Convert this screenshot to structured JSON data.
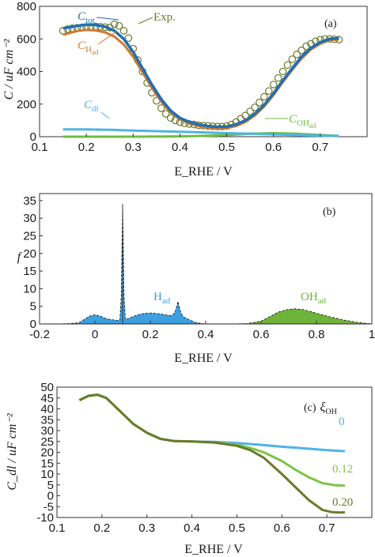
{
  "colors": {
    "c_tot": "#1f6fb2",
    "exp": "#6b7a2a",
    "c_had": "#d07a2e",
    "c_dl": "#4fb3e6",
    "c_ohad": "#6cbf3f",
    "h_ad_fill": "#3b9fe0",
    "oh_ad_fill": "#6fb43a",
    "xi_0": "#4fb3e6",
    "xi_012": "#7cc446",
    "xi_020": "#6b7a2a"
  },
  "chart_data": [
    {
      "panel": "(a)",
      "type": "line",
      "xlabel": "E_RHE / V",
      "ylabel": "C / uF cm⁻²",
      "xlim": [
        0.1,
        0.8
      ],
      "ylim": [
        0,
        800
      ],
      "xticks": [
        "0.1",
        "0.2",
        "0.3",
        "0.4",
        "0.5",
        "0.6",
        "0.7"
      ],
      "yticks": [
        "0",
        "200",
        "400",
        "600",
        "800"
      ],
      "grid": false,
      "series": [
        {
          "name": "Exp.",
          "style": "circles",
          "x": [
            0.15,
            0.16,
            0.17,
            0.18,
            0.19,
            0.2,
            0.21,
            0.22,
            0.23,
            0.24,
            0.25,
            0.26,
            0.27,
            0.28,
            0.29,
            0.3,
            0.31,
            0.32,
            0.33,
            0.34,
            0.35,
            0.36,
            0.37,
            0.38,
            0.39,
            0.4,
            0.41,
            0.42,
            0.43,
            0.44,
            0.45,
            0.46,
            0.47,
            0.48,
            0.49,
            0.5,
            0.51,
            0.52,
            0.53,
            0.54,
            0.55,
            0.56,
            0.57,
            0.58,
            0.59,
            0.6,
            0.61,
            0.62,
            0.63,
            0.64,
            0.65,
            0.66,
            0.67,
            0.68,
            0.69,
            0.7,
            0.71,
            0.72,
            0.73,
            0.74
          ],
          "y": [
            650,
            660,
            665,
            668,
            670,
            672,
            674,
            676,
            675,
            672,
            670,
            690,
            680,
            650,
            605,
            540,
            470,
            400,
            330,
            270,
            220,
            175,
            140,
            115,
            100,
            90,
            82,
            78,
            75,
            70,
            68,
            66,
            64,
            62,
            62,
            65,
            75,
            90,
            110,
            130,
            155,
            180,
            210,
            245,
            280,
            320,
            360,
            400,
            440,
            475,
            505,
            530,
            555,
            570,
            585,
            595,
            600,
            600,
            598,
            596
          ]
        },
        {
          "name": "C_tot",
          "style": "line",
          "x": [
            0.15,
            0.18,
            0.2,
            0.22,
            0.24,
            0.26,
            0.28,
            0.3,
            0.32,
            0.34,
            0.36,
            0.38,
            0.4,
            0.42,
            0.44,
            0.46,
            0.48,
            0.5,
            0.52,
            0.54,
            0.56,
            0.58,
            0.6,
            0.62,
            0.64,
            0.66,
            0.68,
            0.7,
            0.72,
            0.74
          ],
          "y": [
            665,
            680,
            688,
            686,
            675,
            650,
            600,
            520,
            420,
            320,
            230,
            160,
            115,
            90,
            75,
            65,
            60,
            62,
            75,
            100,
            140,
            195,
            265,
            345,
            420,
            490,
            545,
            580,
            600,
            605
          ]
        },
        {
          "name": "C_Had",
          "style": "line",
          "x": [
            0.15,
            0.18,
            0.2,
            0.22,
            0.24,
            0.26,
            0.28,
            0.3,
            0.32,
            0.34,
            0.36,
            0.38,
            0.4,
            0.42,
            0.44,
            0.46,
            0.48,
            0.5,
            0.52,
            0.54,
            0.56,
            0.58,
            0.6,
            0.62,
            0.64,
            0.66,
            0.68,
            0.7,
            0.72,
            0.74
          ],
          "y": [
            625,
            648,
            655,
            652,
            640,
            615,
            565,
            490,
            395,
            300,
            215,
            150,
            105,
            80,
            65,
            55,
            50,
            52,
            65,
            90,
            130,
            185,
            255,
            335,
            410,
            480,
            535,
            570,
            592,
            598
          ]
        },
        {
          "name": "C_dl",
          "style": "line",
          "x": [
            0.15,
            0.2,
            0.25,
            0.3,
            0.35,
            0.4,
            0.45,
            0.5,
            0.55,
            0.6,
            0.65,
            0.7,
            0.74
          ],
          "y": [
            45,
            45,
            42,
            38,
            34,
            30,
            26,
            22,
            18,
            14,
            10,
            6,
            4
          ]
        },
        {
          "name": "C_OHad",
          "style": "line",
          "x": [
            0.15,
            0.2,
            0.3,
            0.4,
            0.45,
            0.5,
            0.55,
            0.6,
            0.65,
            0.7,
            0.74
          ],
          "y": [
            0,
            0,
            0,
            2,
            5,
            10,
            18,
            22,
            18,
            10,
            5
          ]
        }
      ],
      "annotations": [
        {
          "text": "C",
          "sub": "tot"
        },
        {
          "text": "C",
          "sub": "H",
          "sub2": "ad"
        },
        {
          "text": "Exp."
        },
        {
          "text": "C",
          "sub": "dl"
        },
        {
          "text": "C",
          "sub": "OH",
          "sub2": "ad"
        }
      ]
    },
    {
      "panel": "(b)",
      "type": "area",
      "xlabel": "E_RHE / V",
      "ylabel": "f",
      "xlim": [
        -0.2,
        1.0
      ],
      "ylim": [
        0,
        37
      ],
      "xticks": [
        "-0.2",
        "0",
        "0.2",
        "0.4",
        "0.6",
        "0.8",
        "1"
      ],
      "yticks": [
        "0",
        "5",
        "10",
        "15",
        "20",
        "25",
        "30",
        "35"
      ],
      "grid": false,
      "series": [
        {
          "name": "H_ad",
          "fill": true,
          "x": [
            -0.2,
            -0.1,
            -0.06,
            -0.04,
            -0.02,
            0.0,
            0.02,
            0.04,
            0.06,
            0.08,
            0.09,
            0.095,
            0.1,
            0.105,
            0.11,
            0.12,
            0.14,
            0.16,
            0.18,
            0.2,
            0.22,
            0.24,
            0.26,
            0.28,
            0.29,
            0.3,
            0.31,
            0.32,
            0.34,
            0.36,
            0.38,
            0.4
          ],
          "y": [
            0,
            0.05,
            0.3,
            1.2,
            2.2,
            2.6,
            2.2,
            1.5,
            1.2,
            1.0,
            1.1,
            8,
            34,
            8,
            1.2,
            1.5,
            2.2,
            2.7,
            3.0,
            3.1,
            3.0,
            2.8,
            2.5,
            2.4,
            3.5,
            6.4,
            3.2,
            2.0,
            1.2,
            0.5,
            0.15,
            0
          ]
        },
        {
          "name": "OH_ad",
          "fill": true,
          "x": [
            0.5,
            0.55,
            0.6,
            0.63,
            0.66,
            0.69,
            0.72,
            0.75,
            0.78,
            0.81,
            0.85,
            0.9,
            0.95,
            1.0
          ],
          "y": [
            0,
            0.1,
            0.8,
            2.0,
            3.3,
            4.0,
            4.3,
            4.1,
            3.5,
            2.8,
            2.0,
            1.1,
            0.4,
            0
          ]
        }
      ],
      "annotations": [
        {
          "text": "H",
          "sub": "ad"
        },
        {
          "text": "OH",
          "sub": "ad"
        }
      ]
    },
    {
      "panel": "(c)",
      "type": "line",
      "xlabel": "E_RHE / V",
      "ylabel": "C_dl / uF cm⁻²",
      "xlim": [
        0.1,
        0.8
      ],
      "ylim": [
        -10,
        50
      ],
      "xticks": [
        "0.1",
        "0.2",
        "0.3",
        "0.4",
        "0.5",
        "0.6",
        "0.7"
      ],
      "yticks": [
        "-10",
        "-5",
        "0",
        "5",
        "10",
        "15",
        "20",
        "25",
        "30",
        "35",
        "40",
        "45",
        "50"
      ],
      "grid": false,
      "legend_title": "ξ",
      "legend_title_sub": "OH",
      "series": [
        {
          "name": "0",
          "x": [
            0.15,
            0.17,
            0.19,
            0.21,
            0.23,
            0.25,
            0.27,
            0.3,
            0.33,
            0.36,
            0.4,
            0.45,
            0.5,
            0.55,
            0.6,
            0.65,
            0.7,
            0.74
          ],
          "y": [
            44,
            46,
            46.5,
            45,
            41,
            37,
            33,
            29,
            26.2,
            25.2,
            25,
            24.8,
            24.3,
            23.5,
            22.6,
            21.8,
            21,
            20.5
          ]
        },
        {
          "name": "0.12",
          "x": [
            0.15,
            0.17,
            0.19,
            0.21,
            0.23,
            0.25,
            0.27,
            0.3,
            0.33,
            0.36,
            0.4,
            0.45,
            0.5,
            0.53,
            0.56,
            0.6,
            0.63,
            0.66,
            0.69,
            0.72,
            0.74
          ],
          "y": [
            44,
            46,
            46.5,
            45,
            41,
            37,
            33,
            29,
            26.2,
            25.2,
            25,
            24.6,
            23.5,
            22,
            20,
            16,
            12,
            8.5,
            5.8,
            4.8,
            4.7
          ]
        },
        {
          "name": "0.20",
          "x": [
            0.15,
            0.17,
            0.19,
            0.21,
            0.23,
            0.25,
            0.27,
            0.3,
            0.33,
            0.36,
            0.4,
            0.45,
            0.5,
            0.53,
            0.56,
            0.6,
            0.63,
            0.66,
            0.69,
            0.71,
            0.73,
            0.74
          ],
          "y": [
            44,
            46,
            46.5,
            45,
            41,
            37,
            33,
            29,
            26.2,
            25.2,
            25,
            24.5,
            23,
            21,
            17.5,
            10,
            4,
            -2,
            -6.5,
            -7.5,
            -7.7,
            -7.6
          ]
        }
      ]
    }
  ]
}
